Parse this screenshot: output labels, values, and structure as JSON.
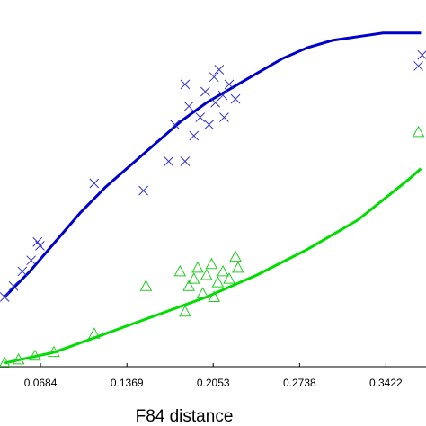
{
  "chart_data": {
    "type": "scatter",
    "xlabel": "F84 distance",
    "xlim": [
      0.0363,
      0.374
    ],
    "ylim": [
      0,
      1
    ],
    "xticks": [
      0.0684,
      0.1369,
      0.2053,
      0.2738,
      0.3422
    ],
    "series": [
      {
        "color": "#0000cc",
        "marker": "line",
        "x": [
          0.04,
          0.06,
          0.08,
          0.1,
          0.12,
          0.14,
          0.16,
          0.18,
          0.2,
          0.22,
          0.24,
          0.26,
          0.28,
          0.3,
          0.32,
          0.34,
          0.36,
          0.37
        ],
        "values": [
          0.19,
          0.26,
          0.34,
          0.42,
          0.49,
          0.55,
          0.61,
          0.67,
          0.72,
          0.76,
          0.8,
          0.84,
          0.87,
          0.89,
          0.9,
          0.91,
          0.91,
          0.91
        ]
      },
      {
        "color": "#00dd00",
        "marker": "line",
        "x": [
          0.04,
          0.08,
          0.12,
          0.16,
          0.2,
          0.24,
          0.28,
          0.32,
          0.36,
          0.37
        ],
        "values": [
          0.01,
          0.04,
          0.09,
          0.14,
          0.19,
          0.25,
          0.32,
          0.4,
          0.51,
          0.54
        ]
      },
      {
        "color": "#3333cc",
        "marker": "x",
        "x": [
          0.04,
          0.047,
          0.054,
          0.061,
          0.066,
          0.068,
          0.111,
          0.15,
          0.17,
          0.183,
          0.175,
          0.186,
          0.19,
          0.195,
          0.199,
          0.202,
          0.206,
          0.207,
          0.21,
          0.213,
          0.214,
          0.218,
          0.223,
          0.183,
          0.371,
          0.368
        ],
        "values": [
          0.19,
          0.22,
          0.26,
          0.29,
          0.34,
          0.33,
          0.5,
          0.48,
          0.56,
          0.56,
          0.66,
          0.71,
          0.63,
          0.68,
          0.75,
          0.66,
          0.79,
          0.72,
          0.81,
          0.74,
          0.68,
          0.77,
          0.73,
          0.77,
          0.85,
          0.82
        ]
      },
      {
        "color": "#22cc22",
        "marker": "triangle",
        "x": [
          0.04,
          0.051,
          0.064,
          0.079,
          0.111,
          0.152,
          0.179,
          0.183,
          0.186,
          0.19,
          0.193,
          0.197,
          0.2,
          0.204,
          0.206,
          0.209,
          0.213,
          0.218,
          0.223,
          0.225,
          0.368
        ],
        "values": [
          0.01,
          0.02,
          0.03,
          0.04,
          0.09,
          0.22,
          0.26,
          0.15,
          0.22,
          0.24,
          0.27,
          0.2,
          0.25,
          0.28,
          0.19,
          0.23,
          0.26,
          0.24,
          0.3,
          0.27,
          0.64
        ]
      }
    ]
  }
}
